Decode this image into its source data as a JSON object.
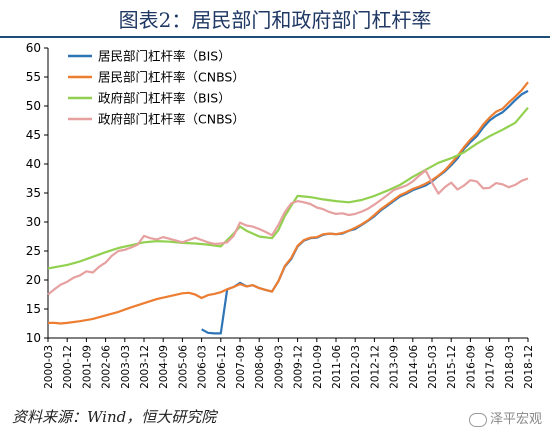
{
  "title": "图表2：居民部门和政府部门杠杆率",
  "source": "资料来源：Wind，恒大研究院",
  "watermark": "泽平宏观",
  "chart_data": {
    "type": "line",
    "x": [
      "2000-03",
      "2000-12",
      "2001-09",
      "2002-06",
      "2003-03",
      "2003-12",
      "2004-09",
      "2005-06",
      "2006-03",
      "2006-12",
      "2007-09",
      "2008-06",
      "2009-03",
      "2009-12",
      "2010-09",
      "2011-06",
      "2012-03",
      "2012-12",
      "2013-09",
      "2014-06",
      "2015-03",
      "2015-12",
      "2016-09",
      "2017-06",
      "2018-03",
      "2018-12"
    ],
    "ylim": [
      10,
      60
    ],
    "yticks": [
      10,
      15,
      20,
      25,
      30,
      35,
      40,
      45,
      50,
      55,
      60
    ],
    "grid": false,
    "legend_position": "top-left",
    "series": [
      {
        "name": "居民部门杠杆率（BIS）",
        "color": "#2e75b6",
        "points": [
          [
            "2006-03",
            11.5
          ],
          [
            "2006-06",
            10.9
          ],
          [
            "2006-09",
            10.8
          ],
          [
            "2006-12",
            10.8
          ],
          [
            "2007-03",
            18.4
          ],
          [
            "2007-06",
            18.8
          ],
          [
            "2007-09",
            19.5
          ],
          [
            "2007-12",
            18.9
          ],
          [
            "2008-03",
            19.1
          ],
          [
            "2008-06",
            18.6
          ],
          [
            "2008-09",
            18.3
          ],
          [
            "2008-12",
            18.0
          ],
          [
            "2009-03",
            19.8
          ],
          [
            "2009-06",
            22.3
          ],
          [
            "2009-09",
            23.6
          ],
          [
            "2009-12",
            25.8
          ],
          [
            "2010-03",
            26.8
          ],
          [
            "2010-06",
            27.2
          ],
          [
            "2010-09",
            27.3
          ],
          [
            "2010-12",
            27.8
          ],
          [
            "2011-03",
            28.0
          ],
          [
            "2011-06",
            27.9
          ],
          [
            "2011-09",
            28.0
          ],
          [
            "2011-12",
            28.5
          ],
          [
            "2012-03",
            28.8
          ],
          [
            "2012-06",
            29.5
          ],
          [
            "2012-09",
            30.2
          ],
          [
            "2012-12",
            31.0
          ],
          [
            "2013-03",
            32.0
          ],
          [
            "2013-06",
            32.8
          ],
          [
            "2013-09",
            33.6
          ],
          [
            "2013-12",
            34.4
          ],
          [
            "2014-03",
            34.9
          ],
          [
            "2014-06",
            35.5
          ],
          [
            "2014-09",
            35.9
          ],
          [
            "2014-12",
            36.3
          ],
          [
            "2015-03",
            37.0
          ],
          [
            "2015-06",
            37.9
          ],
          [
            "2015-09",
            38.7
          ],
          [
            "2015-12",
            39.8
          ],
          [
            "2016-03",
            41.0
          ],
          [
            "2016-06",
            42.6
          ],
          [
            "2016-09",
            43.8
          ],
          [
            "2016-12",
            44.8
          ],
          [
            "2017-03",
            46.3
          ],
          [
            "2017-06",
            47.5
          ],
          [
            "2017-09",
            48.3
          ],
          [
            "2017-12",
            48.9
          ],
          [
            "2018-03",
            49.9
          ],
          [
            "2018-06",
            51.0
          ],
          [
            "2018-09",
            52.0
          ],
          [
            "2018-12",
            52.6
          ]
        ]
      },
      {
        "name": "居民部门杠杆率（CNBS）",
        "color": "#ed7d31",
        "points": [
          [
            "2000-03",
            12.6
          ],
          [
            "2000-06",
            12.6
          ],
          [
            "2000-09",
            12.5
          ],
          [
            "2000-12",
            12.6
          ],
          [
            "2001-06",
            12.9
          ],
          [
            "2001-12",
            13.3
          ],
          [
            "2002-06",
            13.9
          ],
          [
            "2002-12",
            14.5
          ],
          [
            "2003-06",
            15.3
          ],
          [
            "2003-12",
            16.0
          ],
          [
            "2004-06",
            16.7
          ],
          [
            "2004-12",
            17.2
          ],
          [
            "2005-06",
            17.7
          ],
          [
            "2005-09",
            17.8
          ],
          [
            "2005-12",
            17.5
          ],
          [
            "2006-03",
            16.9
          ],
          [
            "2006-06",
            17.4
          ],
          [
            "2006-09",
            17.6
          ],
          [
            "2006-12",
            17.9
          ],
          [
            "2007-03",
            18.4
          ],
          [
            "2007-06",
            18.8
          ],
          [
            "2007-09",
            19.3
          ],
          [
            "2007-12",
            18.9
          ],
          [
            "2008-03",
            19.1
          ],
          [
            "2008-06",
            18.6
          ],
          [
            "2008-09",
            18.3
          ],
          [
            "2008-12",
            18.0
          ],
          [
            "2009-03",
            19.8
          ],
          [
            "2009-06",
            22.4
          ],
          [
            "2009-09",
            23.8
          ],
          [
            "2009-12",
            25.9
          ],
          [
            "2010-03",
            26.9
          ],
          [
            "2010-06",
            27.3
          ],
          [
            "2010-09",
            27.4
          ],
          [
            "2010-12",
            27.9
          ],
          [
            "2011-03",
            28.0
          ],
          [
            "2011-06",
            27.9
          ],
          [
            "2011-09",
            28.1
          ],
          [
            "2011-12",
            28.5
          ],
          [
            "2012-03",
            29.0
          ],
          [
            "2012-06",
            29.6
          ],
          [
            "2012-09",
            30.3
          ],
          [
            "2012-12",
            31.2
          ],
          [
            "2013-03",
            32.2
          ],
          [
            "2013-06",
            33.0
          ],
          [
            "2013-09",
            33.8
          ],
          [
            "2013-12",
            34.6
          ],
          [
            "2014-03",
            35.1
          ],
          [
            "2014-06",
            35.7
          ],
          [
            "2014-09",
            36.1
          ],
          [
            "2014-12",
            36.6
          ],
          [
            "2015-03",
            37.2
          ],
          [
            "2015-06",
            38.0
          ],
          [
            "2015-09",
            38.9
          ],
          [
            "2015-12",
            40.1
          ],
          [
            "2016-03",
            41.4
          ],
          [
            "2016-06",
            42.9
          ],
          [
            "2016-09",
            44.2
          ],
          [
            "2016-12",
            45.3
          ],
          [
            "2017-03",
            46.8
          ],
          [
            "2017-06",
            48.0
          ],
          [
            "2017-09",
            49.0
          ],
          [
            "2017-12",
            49.5
          ],
          [
            "2018-03",
            50.6
          ],
          [
            "2018-06",
            51.6
          ],
          [
            "2018-09",
            52.7
          ],
          [
            "2018-12",
            54.1
          ]
        ]
      },
      {
        "name": "政府部门杠杆率（BIS）",
        "color": "#92d050",
        "points": [
          [
            "2000-03",
            22.0
          ],
          [
            "2000-12",
            22.6
          ],
          [
            "2001-06",
            23.2
          ],
          [
            "2001-12",
            24.0
          ],
          [
            "2002-06",
            24.8
          ],
          [
            "2002-12",
            25.5
          ],
          [
            "2003-06",
            26.0
          ],
          [
            "2003-12",
            26.5
          ],
          [
            "2004-06",
            26.7
          ],
          [
            "2004-12",
            26.6
          ],
          [
            "2005-06",
            26.4
          ],
          [
            "2005-12",
            26.3
          ],
          [
            "2006-06",
            26.1
          ],
          [
            "2006-12",
            25.8
          ],
          [
            "2007-06",
            28.0
          ],
          [
            "2007-09",
            29.2
          ],
          [
            "2007-12",
            28.5
          ],
          [
            "2008-06",
            27.5
          ],
          [
            "2008-12",
            27.2
          ],
          [
            "2009-03",
            28.6
          ],
          [
            "2009-06",
            31.0
          ],
          [
            "2009-09",
            32.8
          ],
          [
            "2009-12",
            34.5
          ],
          [
            "2010-06",
            34.3
          ],
          [
            "2010-12",
            33.9
          ],
          [
            "2011-06",
            33.6
          ],
          [
            "2011-12",
            33.4
          ],
          [
            "2012-06",
            33.8
          ],
          [
            "2012-12",
            34.5
          ],
          [
            "2013-06",
            35.4
          ],
          [
            "2013-12",
            36.4
          ],
          [
            "2014-06",
            37.8
          ],
          [
            "2014-12",
            39.0
          ],
          [
            "2015-06",
            40.2
          ],
          [
            "2015-12",
            41.0
          ],
          [
            "2016-06",
            42.0
          ],
          [
            "2016-12",
            43.5
          ],
          [
            "2017-06",
            44.8
          ],
          [
            "2017-12",
            45.9
          ],
          [
            "2018-06",
            47.1
          ],
          [
            "2018-12",
            49.7
          ]
        ]
      },
      {
        "name": "政府部门杠杆率（CNBS）",
        "color": "#e6a0a0",
        "points": [
          [
            "2000-03",
            17.5
          ],
          [
            "2000-06",
            18.4
          ],
          [
            "2000-09",
            19.2
          ],
          [
            "2000-12",
            19.7
          ],
          [
            "2001-03",
            20.4
          ],
          [
            "2001-06",
            20.8
          ],
          [
            "2001-09",
            21.5
          ],
          [
            "2001-12",
            21.3
          ],
          [
            "2002-03",
            22.3
          ],
          [
            "2002-06",
            23.0
          ],
          [
            "2002-09",
            24.2
          ],
          [
            "2002-12",
            25.0
          ],
          [
            "2003-03",
            25.2
          ],
          [
            "2003-06",
            25.6
          ],
          [
            "2003-09",
            26.1
          ],
          [
            "2003-12",
            27.6
          ],
          [
            "2004-03",
            27.2
          ],
          [
            "2004-06",
            27.0
          ],
          [
            "2004-09",
            27.4
          ],
          [
            "2004-12",
            27.1
          ],
          [
            "2005-03",
            26.8
          ],
          [
            "2005-06",
            26.5
          ],
          [
            "2005-09",
            26.9
          ],
          [
            "2005-12",
            27.3
          ],
          [
            "2006-03",
            26.9
          ],
          [
            "2006-06",
            26.5
          ],
          [
            "2006-09",
            26.2
          ],
          [
            "2006-12",
            26.3
          ],
          [
            "2007-03",
            26.5
          ],
          [
            "2007-06",
            27.6
          ],
          [
            "2007-09",
            29.9
          ],
          [
            "2007-12",
            29.4
          ],
          [
            "2008-03",
            29.2
          ],
          [
            "2008-06",
            28.8
          ],
          [
            "2008-09",
            28.3
          ],
          [
            "2008-12",
            27.7
          ],
          [
            "2009-03",
            29.5
          ],
          [
            "2009-06",
            31.7
          ],
          [
            "2009-09",
            33.2
          ],
          [
            "2009-12",
            33.6
          ],
          [
            "2010-03",
            33.4
          ],
          [
            "2010-06",
            33.1
          ],
          [
            "2010-09",
            32.5
          ],
          [
            "2010-12",
            32.2
          ],
          [
            "2011-03",
            31.7
          ],
          [
            "2011-06",
            31.4
          ],
          [
            "2011-09",
            31.5
          ],
          [
            "2011-12",
            31.2
          ],
          [
            "2012-03",
            31.4
          ],
          [
            "2012-06",
            31.8
          ],
          [
            "2012-09",
            32.3
          ],
          [
            "2012-12",
            33.0
          ],
          [
            "2013-03",
            33.8
          ],
          [
            "2013-06",
            34.6
          ],
          [
            "2013-09",
            35.5
          ],
          [
            "2013-12",
            35.9
          ],
          [
            "2014-03",
            36.3
          ],
          [
            "2014-06",
            37.0
          ],
          [
            "2014-09",
            38.0
          ],
          [
            "2014-12",
            38.9
          ],
          [
            "2015-03",
            36.8
          ],
          [
            "2015-06",
            34.9
          ],
          [
            "2015-09",
            36.0
          ],
          [
            "2015-12",
            36.8
          ],
          [
            "2016-03",
            35.6
          ],
          [
            "2016-06",
            36.3
          ],
          [
            "2016-09",
            37.2
          ],
          [
            "2016-12",
            37.0
          ],
          [
            "2017-03",
            35.8
          ],
          [
            "2017-06",
            35.9
          ],
          [
            "2017-09",
            36.7
          ],
          [
            "2017-12",
            36.5
          ],
          [
            "2018-03",
            36.0
          ],
          [
            "2018-06",
            36.4
          ],
          [
            "2018-09",
            37.1
          ],
          [
            "2018-12",
            37.5
          ]
        ]
      }
    ]
  }
}
